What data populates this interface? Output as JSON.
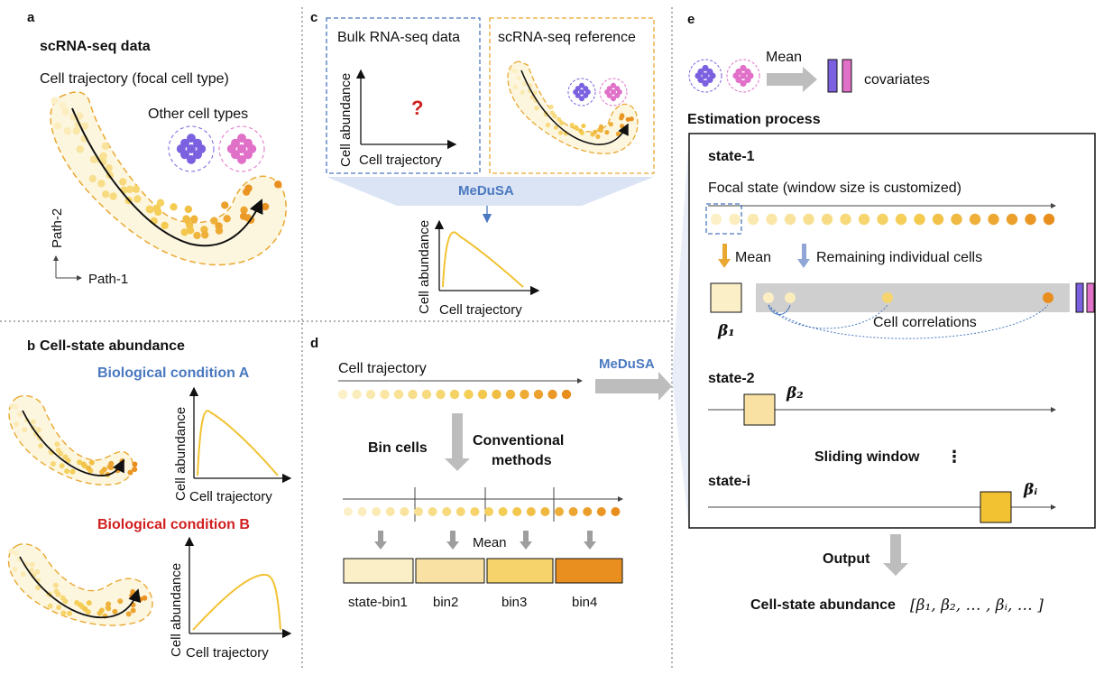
{
  "panel_a": {
    "letter": "a",
    "title": "scRNA-seq data",
    "trajectory_label": "Cell trajectory (focal cell type)",
    "other_cells_label": "Other cell types",
    "axis_y": "Path-2",
    "axis_x": "Path-1"
  },
  "panel_b": {
    "letter": "b",
    "title": "Cell-state abundance",
    "condition_a": "Biological condition A",
    "condition_b": "Biological condition B",
    "ylabel": "Cell abundance",
    "xlabel": "Cell trajectory"
  },
  "panel_c": {
    "letter": "c",
    "bulk_title": "Bulk RNA-seq data",
    "question_mark": "?",
    "ref_title": "scRNA-seq reference",
    "ylabel": "Cell abundance",
    "xlabel": "Cell trajectory",
    "method": "MeDuSA"
  },
  "panel_d": {
    "letter": "d",
    "trajectory_label": "Cell trajectory",
    "method": "MeDuSA",
    "bin_cells": "Bin cells",
    "conventional_1": "Conventional",
    "conventional_2": "methods",
    "mean": "Mean",
    "bins": [
      "state-bin1",
      "bin2",
      "bin3",
      "bin4"
    ],
    "bin_colors": [
      "#fbefc7",
      "#f8e1a2",
      "#f6d36b",
      "#e98f1f"
    ]
  },
  "panel_e": {
    "letter": "e",
    "mean": "Mean",
    "covariates": "covariates",
    "estimation_title": "Estimation process",
    "state1": "state-1",
    "focal_state": "Focal state (window size is customized)",
    "mean_arrow": "Mean",
    "remaining": "Remaining individual cells",
    "beta1": "β₁",
    "correlations": "Cell correlations",
    "state2": "state-2",
    "beta2": "β₂",
    "sliding": "Sliding window",
    "vdots": "⋮",
    "statei": "state-i",
    "betai": "βᵢ",
    "output": "Output",
    "result_label": "Cell-state abundance",
    "result_vector": "[β₁, β₂, … , βᵢ, … ]"
  },
  "colors": {
    "accent_blue": "#4a78c0",
    "accent_red": "#d11f1f",
    "cell_yellow": "#f2c233",
    "dash_orange": "#e9a832",
    "purple_cells": "#7b61e0",
    "pink_cells": "#e070c8",
    "gray_arrow": "#bdbdbd"
  }
}
